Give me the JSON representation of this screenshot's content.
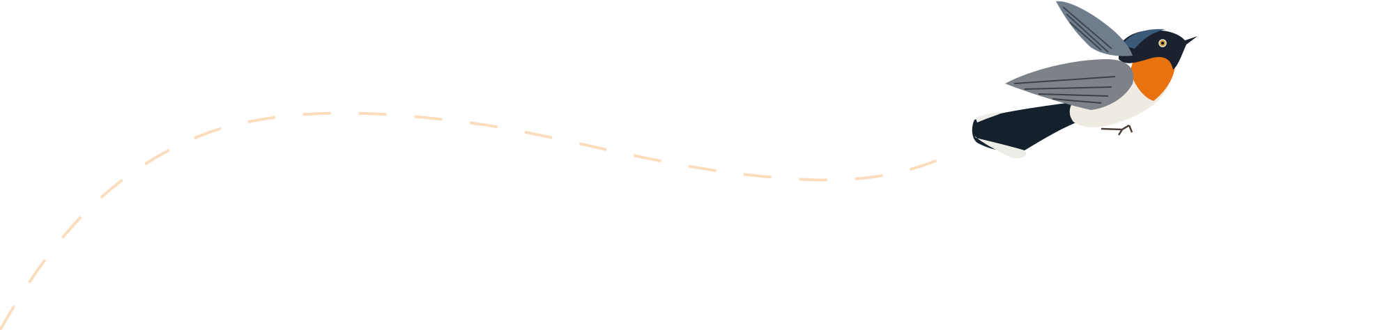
{
  "illustration": {
    "subject": "bird-in-flight",
    "flight_path": {
      "style": "dashed",
      "color": "#fbdcbc"
    },
    "colors": {
      "throat": "#e8720f",
      "head": "#1a2230",
      "back": "#3b5a7a",
      "wing": "#7d8288",
      "belly": "#efebe3",
      "tail": "#14202c"
    }
  }
}
